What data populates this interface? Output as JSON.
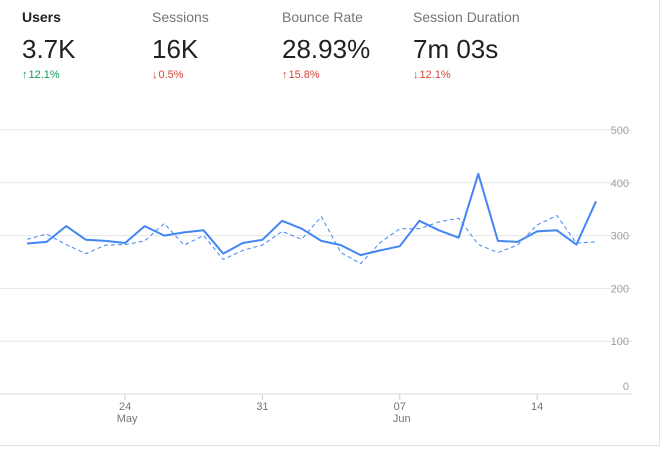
{
  "metrics": [
    {
      "label": "Users",
      "value": "3.7K",
      "change": "12.1%",
      "direction": "up",
      "color": "#0f9d58",
      "active": true
    },
    {
      "label": "Sessions",
      "value": "16K",
      "change": "0.5%",
      "direction": "down",
      "color": "#db4437",
      "active": false
    },
    {
      "label": "Bounce Rate",
      "value": "28.93%",
      "change": "15.8%",
      "direction": "up",
      "color": "#db4437",
      "active": false
    },
    {
      "label": "Session Duration",
      "value": "7m 03s",
      "change": "12.1%",
      "direction": "down",
      "color": "#db4437",
      "active": false
    }
  ],
  "chart_data": {
    "type": "line",
    "ylim": [
      0,
      500
    ],
    "y_ticks": [
      0,
      100,
      200,
      300,
      400,
      500
    ],
    "y_axis_side": "right",
    "grid": true,
    "x_ticks": [
      {
        "index": 5,
        "label": "24",
        "sublabel": "May"
      },
      {
        "index": 12,
        "label": "31",
        "sublabel": ""
      },
      {
        "index": 19,
        "label": "07",
        "sublabel": "Jun"
      },
      {
        "index": 26,
        "label": "14",
        "sublabel": ""
      }
    ],
    "series": [
      {
        "style": "solid",
        "color": "#4285f4",
        "values": [
          285,
          288,
          318,
          292,
          290,
          286,
          318,
          300,
          306,
          310,
          266,
          286,
          292,
          328,
          313,
          290,
          282,
          263,
          272,
          280,
          328,
          310,
          296,
          417,
          290,
          288,
          308,
          310,
          283,
          365
        ]
      },
      {
        "style": "dashed",
        "color": "#4285f4",
        "values": [
          293,
          303,
          283,
          266,
          282,
          283,
          290,
          323,
          282,
          300,
          255,
          272,
          282,
          308,
          293,
          336,
          268,
          247,
          287,
          313,
          313,
          326,
          333,
          283,
          268,
          282,
          320,
          338,
          286,
          288
        ]
      }
    ]
  }
}
